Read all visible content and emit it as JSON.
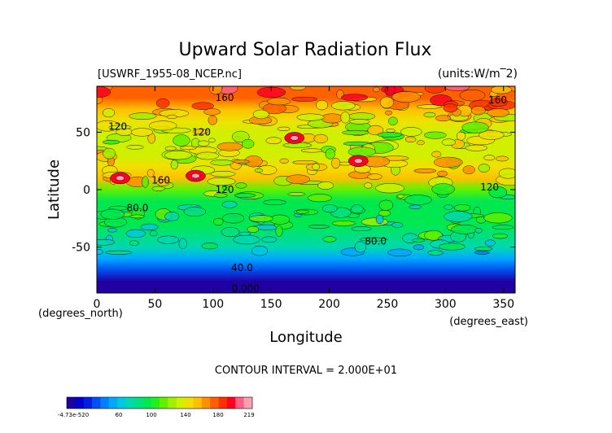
{
  "chart_data": {
    "type": "heatmap",
    "title": "Upward Solar Radiation Flux",
    "file_label": "[USWRF_1955-08_NCEP.nc]",
    "units_label": "(units:W/m^2)",
    "xlabel": "Longitude",
    "ylabel": "Latitude",
    "x_unit_label": "(degrees_east)",
    "y_unit_label": "(degrees_north)",
    "xlim": [
      0,
      360
    ],
    "ylim": [
      -90,
      90
    ],
    "x_ticks": [
      "0",
      "50",
      "100",
      "150",
      "200",
      "250",
      "300",
      "350"
    ],
    "y_ticks": [
      "50",
      "0",
      "-50"
    ],
    "contour_interval_label": "CONTOUR INTERVAL = 2.000E+01",
    "contour_labels": [
      {
        "text": "160",
        "lon": 110,
        "lat": 80
      },
      {
        "text": "160",
        "lon": 345,
        "lat": 78
      },
      {
        "text": "120",
        "lon": 18,
        "lat": 55
      },
      {
        "text": "120",
        "lon": 90,
        "lat": 50
      },
      {
        "text": "160",
        "lon": 55,
        "lat": 8
      },
      {
        "text": "120",
        "lon": 110,
        "lat": 0
      },
      {
        "text": "120",
        "lon": 338,
        "lat": 2
      },
      {
        "text": "80.0",
        "lon": 35,
        "lat": -16
      },
      {
        "text": "80.0",
        "lon": 240,
        "lat": -45
      },
      {
        "text": "40.0",
        "lon": 125,
        "lat": -68
      },
      {
        "text": "0.000",
        "lon": 128,
        "lat": -86
      }
    ],
    "zonal_profile": {
      "lat": [
        90,
        80,
        70,
        60,
        50,
        40,
        30,
        20,
        10,
        0,
        -10,
        -20,
        -30,
        -40,
        -50,
        -60,
        -70,
        -80,
        -90
      ],
      "value": [
        178,
        172,
        155,
        140,
        130,
        130,
        138,
        142,
        150,
        118,
        95,
        90,
        92,
        85,
        75,
        55,
        30,
        8,
        0
      ]
    },
    "colorbar": {
      "tick_labels": [
        "-4.73e-520",
        "60",
        "100",
        "140",
        "180",
        "219"
      ],
      "colors": [
        "#2000a0",
        "#0000c8",
        "#0020e0",
        "#0050f0",
        "#0080ff",
        "#00a8ff",
        "#00c8e0",
        "#00d8b0",
        "#00e080",
        "#00e850",
        "#20f020",
        "#60f000",
        "#a0f000",
        "#d0f000",
        "#f0e000",
        "#ffc000",
        "#ff9000",
        "#ff6000",
        "#ff3000",
        "#ff0020",
        "#ff6080",
        "#ffa0b0"
      ]
    }
  }
}
